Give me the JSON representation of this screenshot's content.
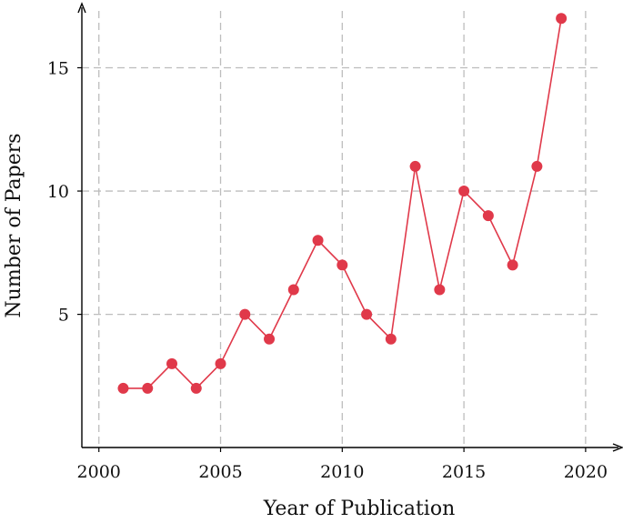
{
  "chart_data": {
    "type": "line",
    "xlabel": "Year of Publication",
    "ylabel": "Number of Papers",
    "xlim": [
      1999.3,
      2021.2
    ],
    "ylim": [
      -0.4,
      17.6
    ],
    "xticks": [
      2000,
      2005,
      2010,
      2015,
      2020
    ],
    "yticks": [
      5,
      10,
      15
    ],
    "grid": true,
    "series": [
      {
        "x": [
          2001,
          2002,
          2003,
          2004,
          2005,
          2006,
          2007,
          2008,
          2009,
          2010,
          2011,
          2012,
          2013,
          2014,
          2015,
          2016,
          2017,
          2018,
          2019
        ],
        "y": [
          2,
          2,
          3,
          2,
          3,
          5,
          4,
          6,
          8,
          7,
          5,
          4,
          11,
          6,
          10,
          9,
          7,
          11,
          17
        ]
      }
    ]
  },
  "colors": {
    "series": "#e0394a",
    "grid": "#bdbdbd",
    "axis": "#000000"
  }
}
